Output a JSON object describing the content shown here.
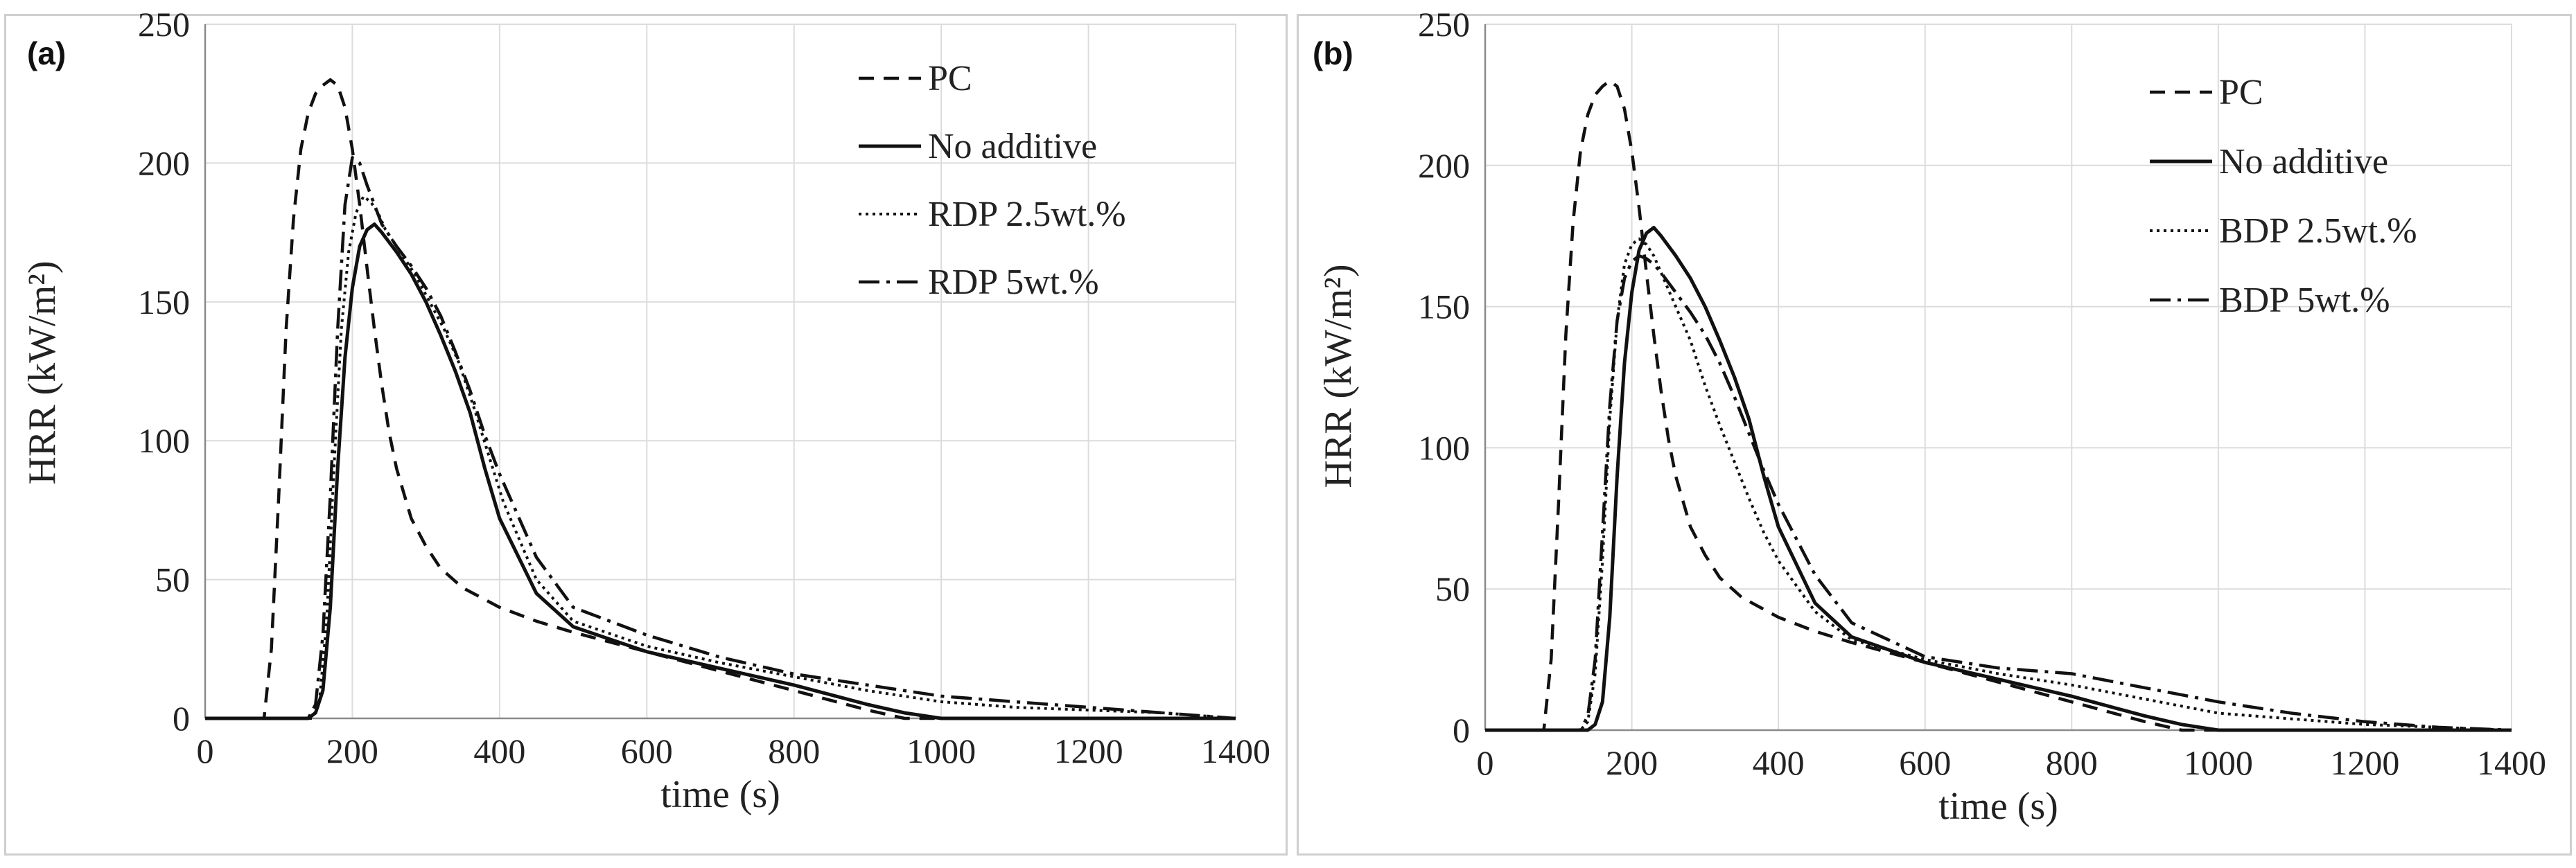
{
  "chart_data": [
    {
      "type": "line",
      "panel_label": "(a)",
      "title": "",
      "xlabel": "time (s)",
      "ylabel": "HRR (kW/m²)",
      "xlim": [
        0,
        1400
      ],
      "ylim": [
        0,
        250
      ],
      "xticks": [
        0,
        200,
        400,
        600,
        800,
        1000,
        1200,
        1400
      ],
      "yticks": [
        0,
        50,
        100,
        150,
        200,
        250
      ],
      "grid": true,
      "legend_position": "top-right",
      "series": [
        {
          "name": "PC",
          "style": "dashed",
          "x": [
            0,
            80,
            90,
            100,
            110,
            120,
            130,
            140,
            150,
            160,
            170,
            180,
            190,
            200,
            210,
            220,
            230,
            240,
            250,
            260,
            280,
            300,
            320,
            350,
            400,
            450,
            500,
            600,
            700,
            800,
            900,
            950,
            1000,
            1400
          ],
          "y": [
            0,
            0,
            25,
            80,
            140,
            180,
            205,
            218,
            225,
            228,
            230,
            228,
            220,
            205,
            185,
            162,
            140,
            120,
            103,
            90,
            72,
            62,
            54,
            47,
            40,
            35,
            31,
            24,
            17,
            10,
            3,
            0,
            0,
            0
          ]
        },
        {
          "name": "No additive",
          "style": "solid",
          "x": [
            0,
            140,
            150,
            160,
            170,
            180,
            190,
            200,
            210,
            220,
            230,
            240,
            260,
            280,
            300,
            320,
            340,
            360,
            380,
            400,
            450,
            500,
            600,
            700,
            800,
            900,
            950,
            1000,
            1400
          ],
          "y": [
            0,
            0,
            2,
            10,
            40,
            90,
            130,
            155,
            170,
            176,
            178,
            175,
            168,
            160,
            150,
            138,
            125,
            110,
            90,
            72,
            45,
            33,
            24,
            18,
            12,
            5,
            2,
            0,
            0
          ]
        },
        {
          "name": "RDP 2.5wt.%",
          "style": "dotted",
          "x": [
            0,
            145,
            155,
            165,
            175,
            185,
            195,
            205,
            215,
            225,
            235,
            245,
            265,
            285,
            305,
            325,
            345,
            365,
            385,
            405,
            450,
            500,
            600,
            700,
            800,
            900,
            1000,
            1100,
            1200,
            1300,
            1350,
            1400
          ],
          "y": [
            0,
            0,
            5,
            35,
            90,
            140,
            168,
            182,
            188,
            186,
            182,
            176,
            168,
            160,
            150,
            140,
            128,
            112,
            95,
            78,
            50,
            35,
            26,
            20,
            15,
            10,
            6,
            4,
            3,
            2,
            1,
            0
          ]
        },
        {
          "name": "RDP 5wt.%",
          "style": "dashdot",
          "x": [
            0,
            140,
            150,
            160,
            170,
            180,
            190,
            200,
            210,
            220,
            230,
            240,
            260,
            280,
            300,
            320,
            340,
            360,
            380,
            400,
            450,
            500,
            600,
            700,
            800,
            900,
            1000,
            1100,
            1200,
            1300,
            1350,
            1400
          ],
          "y": [
            0,
            0,
            5,
            30,
            80,
            140,
            185,
            202,
            200,
            192,
            185,
            178,
            170,
            163,
            155,
            145,
            132,
            118,
            102,
            88,
            58,
            40,
            30,
            22,
            16,
            12,
            8,
            6,
            4,
            2,
            1,
            0
          ]
        }
      ]
    },
    {
      "type": "line",
      "panel_label": "(b)",
      "title": "",
      "xlabel": "time (s)",
      "ylabel": "HRR (kW/m²)",
      "xlim": [
        0,
        1400
      ],
      "ylim": [
        0,
        250
      ],
      "xticks": [
        0,
        200,
        400,
        600,
        800,
        1000,
        1200,
        1400
      ],
      "yticks": [
        0,
        50,
        100,
        150,
        200,
        250
      ],
      "grid": true,
      "legend_position": "top-right",
      "series": [
        {
          "name": "PC",
          "style": "dashed",
          "x": [
            0,
            80,
            90,
            100,
            110,
            120,
            130,
            140,
            150,
            160,
            170,
            180,
            190,
            200,
            210,
            220,
            230,
            240,
            250,
            260,
            280,
            300,
            320,
            350,
            400,
            450,
            500,
            600,
            700,
            800,
            900,
            950,
            1000,
            1400
          ],
          "y": [
            0,
            0,
            25,
            80,
            140,
            180,
            205,
            218,
            225,
            228,
            230,
            228,
            220,
            205,
            185,
            162,
            140,
            120,
            103,
            90,
            72,
            62,
            54,
            47,
            40,
            35,
            31,
            24,
            17,
            10,
            3,
            0,
            0,
            0
          ]
        },
        {
          "name": "No additive",
          "style": "solid",
          "x": [
            0,
            140,
            150,
            160,
            170,
            180,
            190,
            200,
            210,
            220,
            230,
            240,
            260,
            280,
            300,
            320,
            340,
            360,
            380,
            400,
            450,
            500,
            600,
            700,
            800,
            900,
            950,
            1000,
            1400
          ],
          "y": [
            0,
            0,
            2,
            10,
            40,
            90,
            130,
            155,
            170,
            176,
            178,
            175,
            168,
            160,
            150,
            138,
            125,
            110,
            90,
            72,
            45,
            33,
            24,
            18,
            12,
            5,
            2,
            0,
            0
          ]
        },
        {
          "name": "BDP 2.5wt.%",
          "style": "dotted",
          "x": [
            0,
            130,
            140,
            150,
            160,
            170,
            180,
            190,
            200,
            210,
            220,
            230,
            240,
            260,
            280,
            300,
            320,
            340,
            360,
            380,
            400,
            450,
            500,
            600,
            700,
            800,
            900,
            1000,
            1100,
            1200,
            1300,
            1400
          ],
          "y": [
            0,
            0,
            3,
            20,
            60,
            110,
            145,
            165,
            172,
            174,
            172,
            168,
            162,
            150,
            138,
            122,
            108,
            95,
            82,
            70,
            60,
            42,
            32,
            25,
            20,
            16,
            11,
            6,
            4,
            2,
            1,
            0
          ]
        },
        {
          "name": "BDP 5wt.%",
          "style": "dashdot",
          "x": [
            0,
            130,
            140,
            150,
            160,
            170,
            180,
            190,
            200,
            210,
            220,
            230,
            240,
            260,
            280,
            300,
            320,
            340,
            360,
            380,
            400,
            450,
            500,
            600,
            700,
            800,
            900,
            1000,
            1100,
            1200,
            1300,
            1400
          ],
          "y": [
            0,
            0,
            5,
            25,
            70,
            115,
            145,
            160,
            166,
            168,
            167,
            165,
            162,
            155,
            148,
            140,
            130,
            118,
            105,
            92,
            80,
            55,
            38,
            26,
            22,
            20,
            15,
            10,
            6,
            3,
            1,
            0
          ]
        }
      ]
    }
  ]
}
